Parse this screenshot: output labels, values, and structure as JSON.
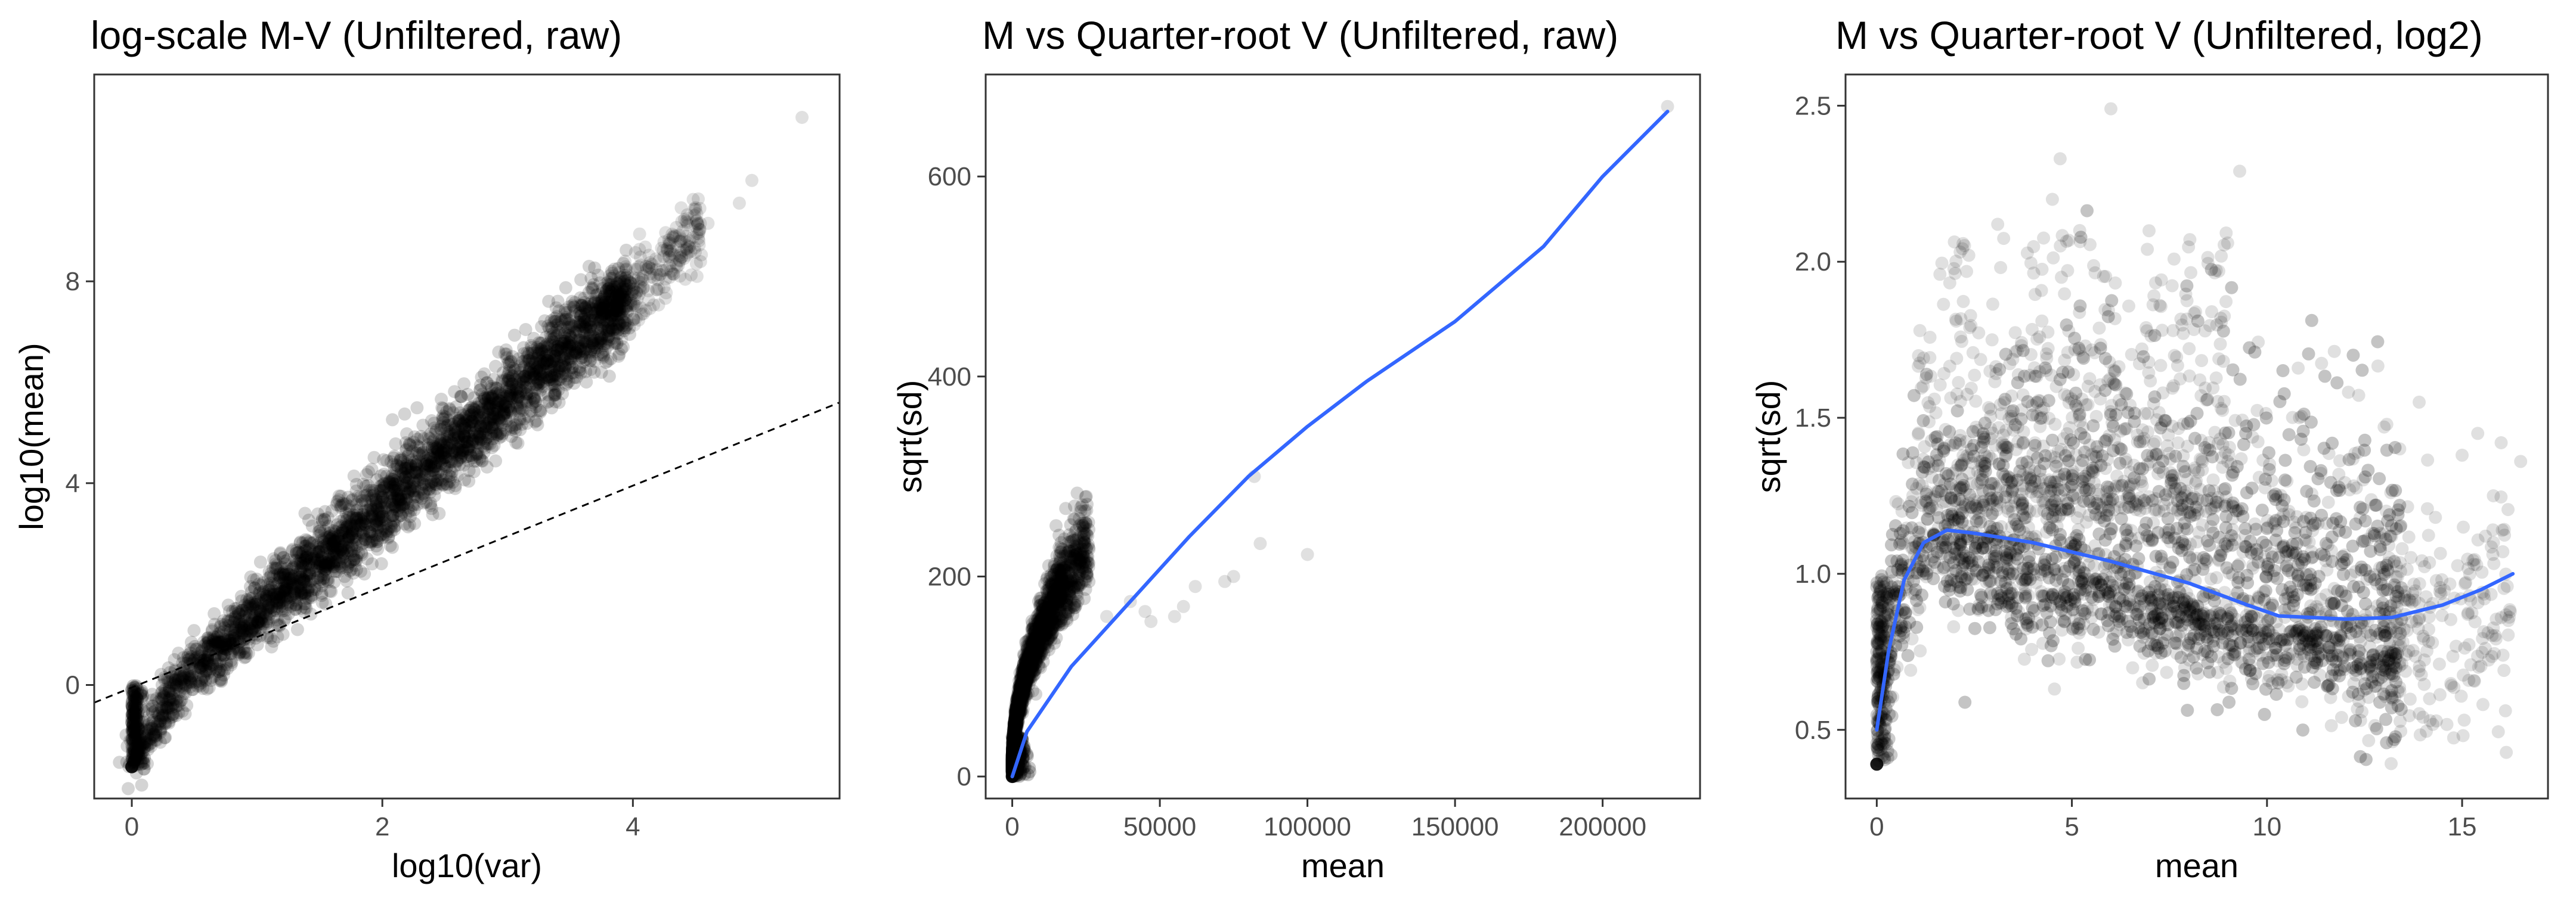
{
  "chart_data": [
    {
      "type": "scatter",
      "title": "log-scale M-V (Unfiltered, raw)",
      "xlabel": "log10(var)",
      "ylabel": "log10(mean)",
      "xlim": [
        -0.3,
        5.65
      ],
      "ylim": [
        -2.25,
        12.1
      ],
      "xticks": [
        0,
        2,
        4
      ],
      "yticks": [
        0,
        4,
        8
      ],
      "grid": false,
      "point_color": "#000000",
      "point_alpha": 0.12,
      "reference_line": {
        "style": "dashed",
        "intercept": -0.05,
        "slope": 1.0
      },
      "cloud": {
        "x_min": 0,
        "x_max": 4.5,
        "y_at_x_min": -1.6,
        "y_at_x_max": 8.4
      },
      "outliers": [
        [
          5.35,
          11.25
        ],
        [
          4.95,
          10.0
        ],
        [
          4.85,
          9.55
        ],
        [
          4.6,
          9.15
        ],
        [
          4.4,
          9.0
        ]
      ]
    },
    {
      "type": "scatter",
      "title": "M vs Quarter-root V (Unfiltered, raw)",
      "xlabel": "mean",
      "ylabel": "sqrt(sd)",
      "xlim": [
        -9000,
        233000
      ],
      "ylim": [
        -22,
        702
      ],
      "xticks": [
        0,
        50000,
        100000,
        150000,
        200000
      ],
      "yticks": [
        0,
        200,
        400,
        600
      ],
      "grid": false,
      "point_color": "#000000",
      "point_alpha": 0.12,
      "trend_color": "#3366ff",
      "trend": [
        [
          0,
          0
        ],
        [
          5000,
          45
        ],
        [
          20000,
          110
        ],
        [
          40000,
          175
        ],
        [
          60000,
          240
        ],
        [
          80000,
          300
        ],
        [
          100000,
          350
        ],
        [
          120000,
          395
        ],
        [
          150000,
          455
        ],
        [
          180000,
          530
        ],
        [
          200000,
          600
        ],
        [
          222000,
          665
        ]
      ],
      "outliers": [
        [
          222000,
          670
        ],
        [
          82000,
          300
        ],
        [
          100000,
          222
        ],
        [
          84000,
          233
        ],
        [
          75000,
          200
        ],
        [
          72000,
          195
        ],
        [
          62000,
          190
        ],
        [
          58000,
          170
        ],
        [
          55000,
          160
        ],
        [
          40000,
          175
        ],
        [
          45000,
          165
        ],
        [
          47000,
          155
        ],
        [
          32000,
          160
        ]
      ]
    },
    {
      "type": "scatter",
      "title": "M vs Quarter-root V (Unfiltered, log2)",
      "xlabel": "mean",
      "ylabel": "sqrt(sd)",
      "xlim": [
        -0.8,
        17.2
      ],
      "ylim": [
        0.28,
        2.6
      ],
      "xticks": [
        0,
        5,
        10,
        15
      ],
      "yticks": [
        0.5,
        1.0,
        1.5,
        2.0,
        2.5
      ],
      "ytick_labels": [
        "0.5",
        "1.0",
        "1.5",
        "2.0",
        "2.5"
      ],
      "grid": false,
      "point_color": "#000000",
      "point_alpha": 0.12,
      "trend_color": "#3366ff",
      "trend": [
        [
          0,
          0.5
        ],
        [
          0.3,
          0.75
        ],
        [
          0.7,
          0.98
        ],
        [
          1.2,
          1.1
        ],
        [
          1.8,
          1.14
        ],
        [
          2.5,
          1.13
        ],
        [
          4,
          1.1
        ],
        [
          6,
          1.04
        ],
        [
          8,
          0.97
        ],
        [
          9.5,
          0.9
        ],
        [
          10.3,
          0.865
        ],
        [
          12,
          0.855
        ],
        [
          13.2,
          0.86
        ],
        [
          14.5,
          0.9
        ],
        [
          15.5,
          0.95
        ],
        [
          16.3,
          1.0
        ]
      ],
      "outliers": [
        [
          6.0,
          2.49
        ],
        [
          4.7,
          2.33
        ],
        [
          9.3,
          2.29
        ],
        [
          4.5,
          2.2
        ],
        [
          5.2,
          2.1
        ],
        [
          3.1,
          2.12
        ],
        [
          15.0,
          1.38
        ],
        [
          15.4,
          1.45
        ],
        [
          16.0,
          1.42
        ],
        [
          16.5,
          1.36
        ],
        [
          15.8,
          1.25
        ],
        [
          13.9,
          1.55
        ]
      ]
    }
  ]
}
